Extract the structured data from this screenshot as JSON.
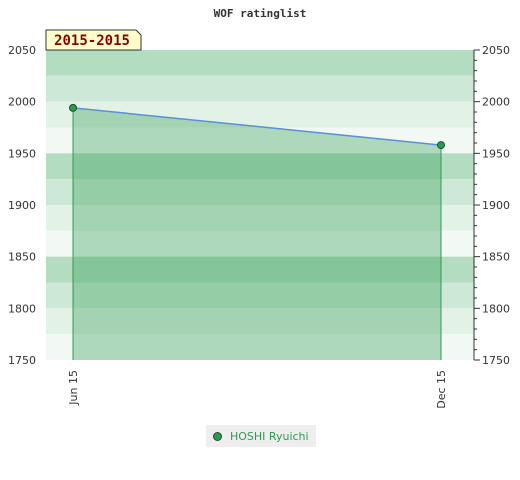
{
  "chart_data": {
    "type": "area",
    "title": "WOF ratinglist",
    "period_badge": "2015-2015",
    "x": [
      "Jun 15",
      "Dec 15"
    ],
    "series": [
      {
        "name": "HOSHI Ryuichi",
        "values": [
          1994,
          1958
        ]
      }
    ],
    "ylim": [
      1750,
      2050
    ],
    "y_ticks": [
      "1750",
      "1800",
      "1850",
      "1900",
      "1950",
      "2000",
      "2050"
    ],
    "legend_position": "bottom-center",
    "colors": {
      "line": "#5b8fd6",
      "marker": "#2e9a50",
      "fill": "#2e9a50",
      "band_dark": "#b3dcc1",
      "band_mid": "#cde8d6",
      "band_light": "#e2f2e7",
      "band_lightest": "#f2f9f4"
    }
  }
}
